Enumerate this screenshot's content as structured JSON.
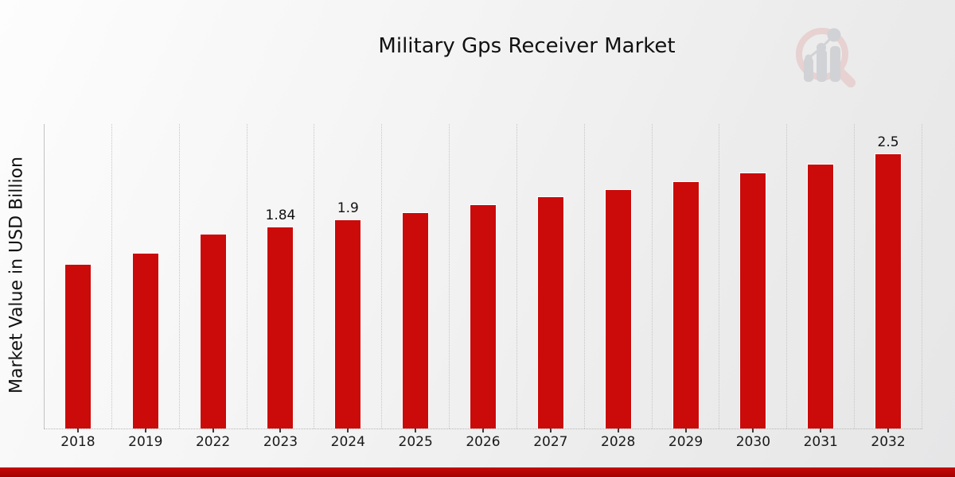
{
  "page": {
    "title": "Military Gps Receiver Market",
    "footer_accent_color": "#b00404",
    "background_color": "#ededee"
  },
  "chart_data": {
    "type": "bar",
    "title": "Military Gps Receiver Market",
    "xlabel": "",
    "ylabel": "Market Value in USD Billion",
    "categories": [
      "2018",
      "2019",
      "2022",
      "2023",
      "2024",
      "2025",
      "2026",
      "2027",
      "2028",
      "2029",
      "2030",
      "2031",
      "2032"
    ],
    "values": [
      1.5,
      1.6,
      1.77,
      1.84,
      1.9,
      1.97,
      2.04,
      2.11,
      2.18,
      2.25,
      2.33,
      2.41,
      2.5
    ],
    "bar_labels": [
      "",
      "",
      "",
      "1.84",
      "1.9",
      "",
      "",
      "",
      "",
      "",
      "",
      "",
      "2.5"
    ],
    "bar_color": "#cb0a0a",
    "ylim": [
      0,
      2.77
    ],
    "grid": "vertical-dotted",
    "legend": "none"
  },
  "logo": {
    "name": "magnifier-bar-chart-logo",
    "ring_color": "#e7cdcd",
    "bars_color": "#cdced2"
  }
}
